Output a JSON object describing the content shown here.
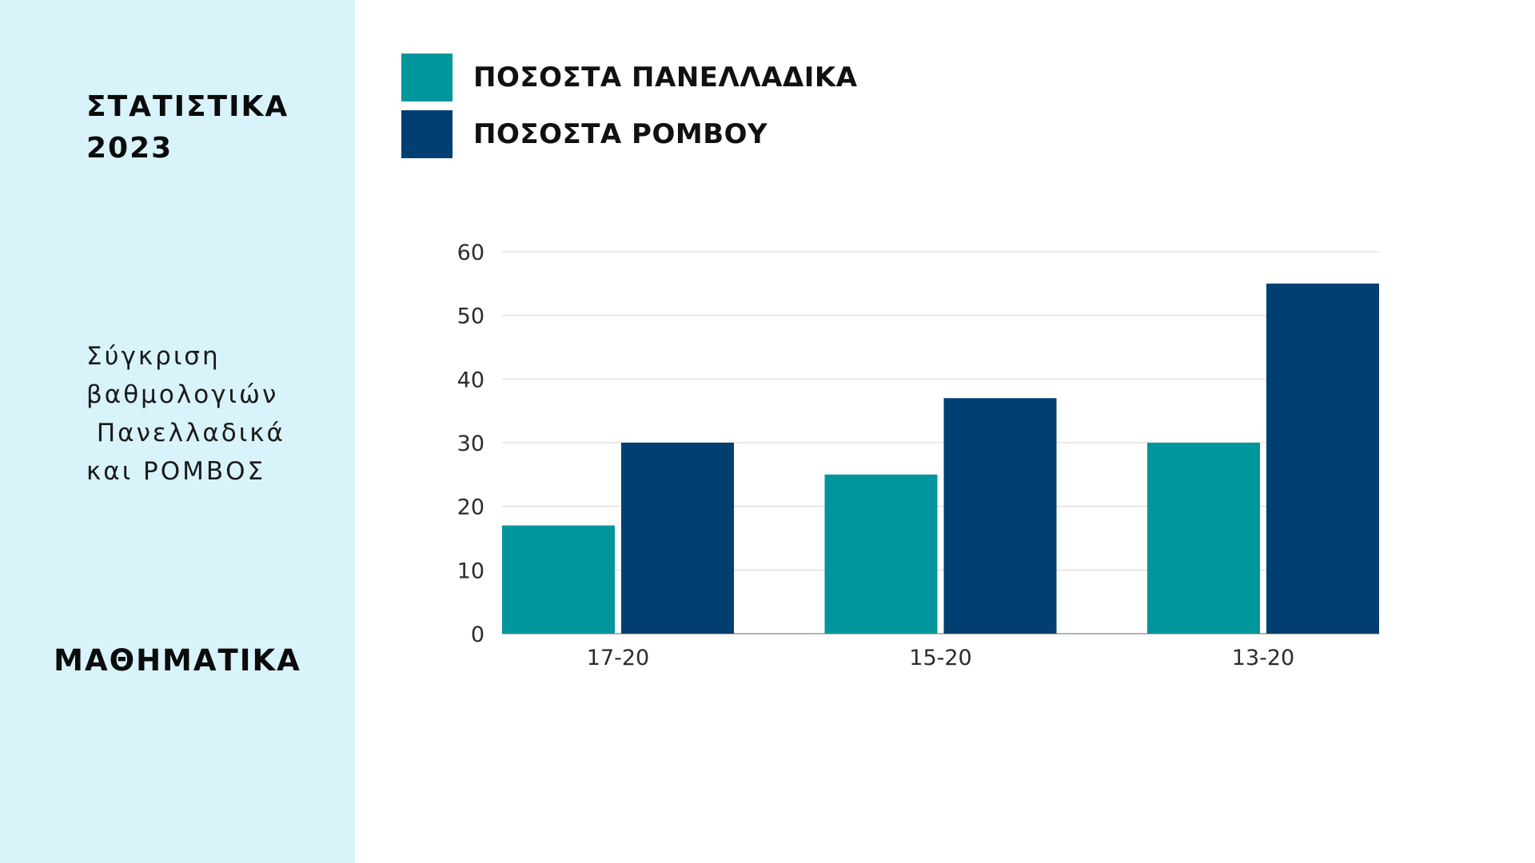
{
  "sidebar": {
    "title_lines": [
      "ΣΤΑΤΙΣΤΙΚΑ",
      "2023"
    ],
    "description_lines": [
      "Σύγκριση",
      "βαθμολογιών",
      " Πανελλαδικά",
      "και ΡΟΜΒΟΣ"
    ],
    "subject": "ΜΑΘΗΜΑΤΙΚΑ"
  },
  "colors": {
    "sidebar_bg": "#d8f3fa",
    "series_1": "#01959c",
    "series_2": "#003f72",
    "grid": "#d4d4d4",
    "axis_text": "#2b2b2b"
  },
  "chart_data": {
    "type": "bar",
    "categories": [
      "17-20",
      "15-20",
      "13-20"
    ],
    "series": [
      {
        "name": "ΠΟΣΟΣΤΑ ΠΑΝΕΛΛΑΔΙΚΑ",
        "color": "#01959c",
        "values": [
          17,
          25,
          30
        ]
      },
      {
        "name": "ΠΟΣΟΣΤΑ ΡΟΜΒΟΥ",
        "color": "#003f72",
        "values": [
          30,
          37,
          55
        ]
      }
    ],
    "ylim": [
      0,
      60
    ],
    "yticks": [
      0,
      10,
      20,
      30,
      40,
      50,
      60
    ],
    "grid": true,
    "legend_position": "top-left"
  }
}
